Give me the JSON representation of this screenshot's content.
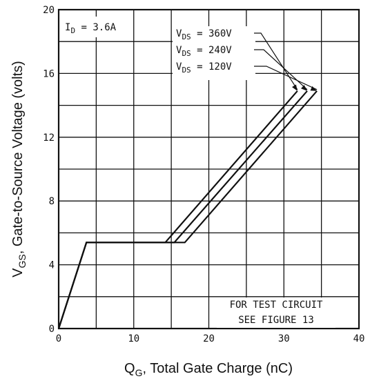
{
  "chart_data": {
    "type": "line",
    "xlabel": {
      "q": "Q",
      "sub": "G",
      "rest": ", Total Gate Charge (nC)"
    },
    "ylabel": {
      "v": "V",
      "sub": "GS",
      "rest": ", Gate-to-Source Voltage (volts)"
    },
    "xlim": [
      0,
      40
    ],
    "ylim": [
      0,
      20
    ],
    "x_ticks": [
      0,
      10,
      20,
      30,
      40
    ],
    "y_ticks": [
      0,
      4,
      8,
      12,
      16,
      20
    ],
    "grid": true,
    "condition": {
      "symbol": "I",
      "sub": "D",
      "value": " = 3.6A"
    },
    "note_lines": [
      "FOR TEST CIRCUIT",
      "SEE FIGURE 13"
    ],
    "series": [
      {
        "name": "VDS = 360V",
        "label": {
          "v": "V",
          "sub": "DS",
          "value": " = 360V"
        },
        "x": [
          0,
          3.7,
          14.2,
          31.8
        ],
        "y": [
          0,
          5.4,
          5.4,
          14.9
        ]
      },
      {
        "name": "VDS = 240V",
        "label": {
          "v": "V",
          "sub": "DS",
          "value": " = 240V"
        },
        "x": [
          0,
          3.7,
          15.4,
          33.1
        ],
        "y": [
          0,
          5.4,
          5.4,
          14.9
        ]
      },
      {
        "name": "VDS = 120V",
        "label": {
          "v": "V",
          "sub": "DS",
          "value": " = 120V"
        },
        "x": [
          0,
          3.7,
          16.8,
          34.4
        ],
        "y": [
          0,
          5.4,
          5.4,
          14.9
        ]
      }
    ]
  }
}
